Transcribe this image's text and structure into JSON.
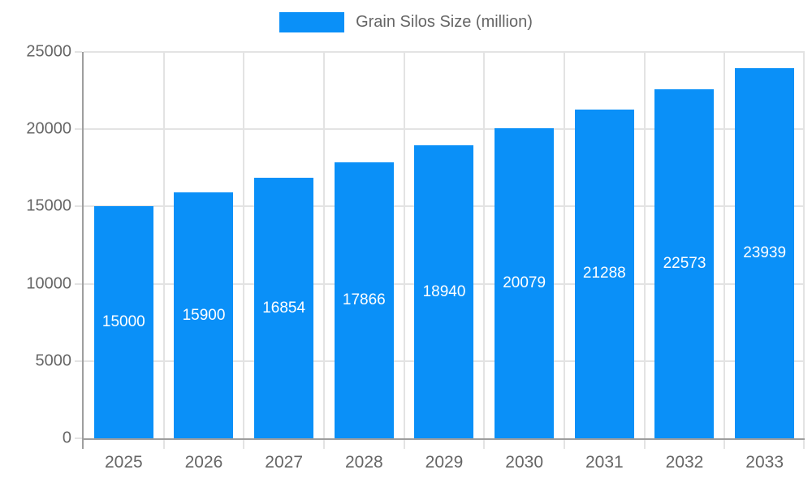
{
  "chart_data": {
    "type": "bar",
    "title": "Grain Silos Size (million)",
    "legend_label": "Grain Silos Size (million)",
    "legend_position": "top",
    "categories": [
      "2025",
      "2026",
      "2027",
      "2028",
      "2029",
      "2030",
      "2031",
      "2032",
      "2033"
    ],
    "series": [
      {
        "name": "Grain Silos Size (million)",
        "values": [
          15000,
          15900,
          16854,
          17866,
          18940,
          20079,
          21288,
          22573,
          23939
        ]
      }
    ],
    "data_labels_visible": true,
    "xlabel": "",
    "ylabel": "",
    "ylim": [
      0,
      25000
    ],
    "y_ticks": [
      0,
      5000,
      10000,
      15000,
      20000,
      25000
    ],
    "grid": true,
    "colors": {
      "bar": "#0a90f8",
      "grid": "#e3e3e3",
      "axis_line": "#9e9e9e",
      "axis_text": "#666666",
      "bar_label": "#ffffff",
      "legend_text": "#666666",
      "background": "#ffffff"
    }
  }
}
